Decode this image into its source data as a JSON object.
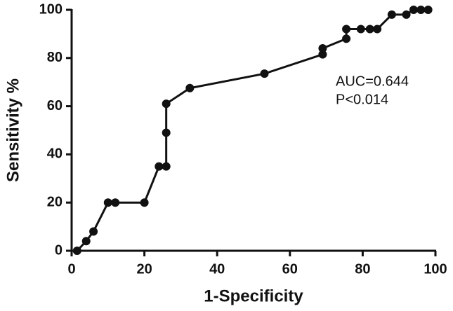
{
  "chart_data": {
    "type": "line",
    "x_label": "1-Specificity",
    "y_label": "Sensitivity %",
    "annotations": [
      "AUC=0.644",
      "P<0.014"
    ],
    "x": [
      1.5,
      4,
      6,
      10,
      12,
      20,
      24,
      26,
      26,
      26,
      32.5,
      53,
      69,
      69,
      75.5,
      75.5,
      79.5,
      82,
      84,
      88,
      92,
      94,
      96,
      98
    ],
    "values": [
      0,
      4,
      8,
      20,
      20,
      20,
      35,
      35,
      49,
      61,
      67.5,
      73.5,
      81.5,
      84,
      88,
      92,
      92,
      92,
      92,
      98,
      98,
      100,
      100,
      100
    ],
    "color": "#111111",
    "xlim": [
      0,
      100
    ],
    "xticks": [
      0,
      20,
      40,
      60,
      80,
      100
    ],
    "ylim": [
      0,
      100
    ],
    "yticks": [
      0,
      20,
      40,
      60,
      80,
      100
    ]
  }
}
